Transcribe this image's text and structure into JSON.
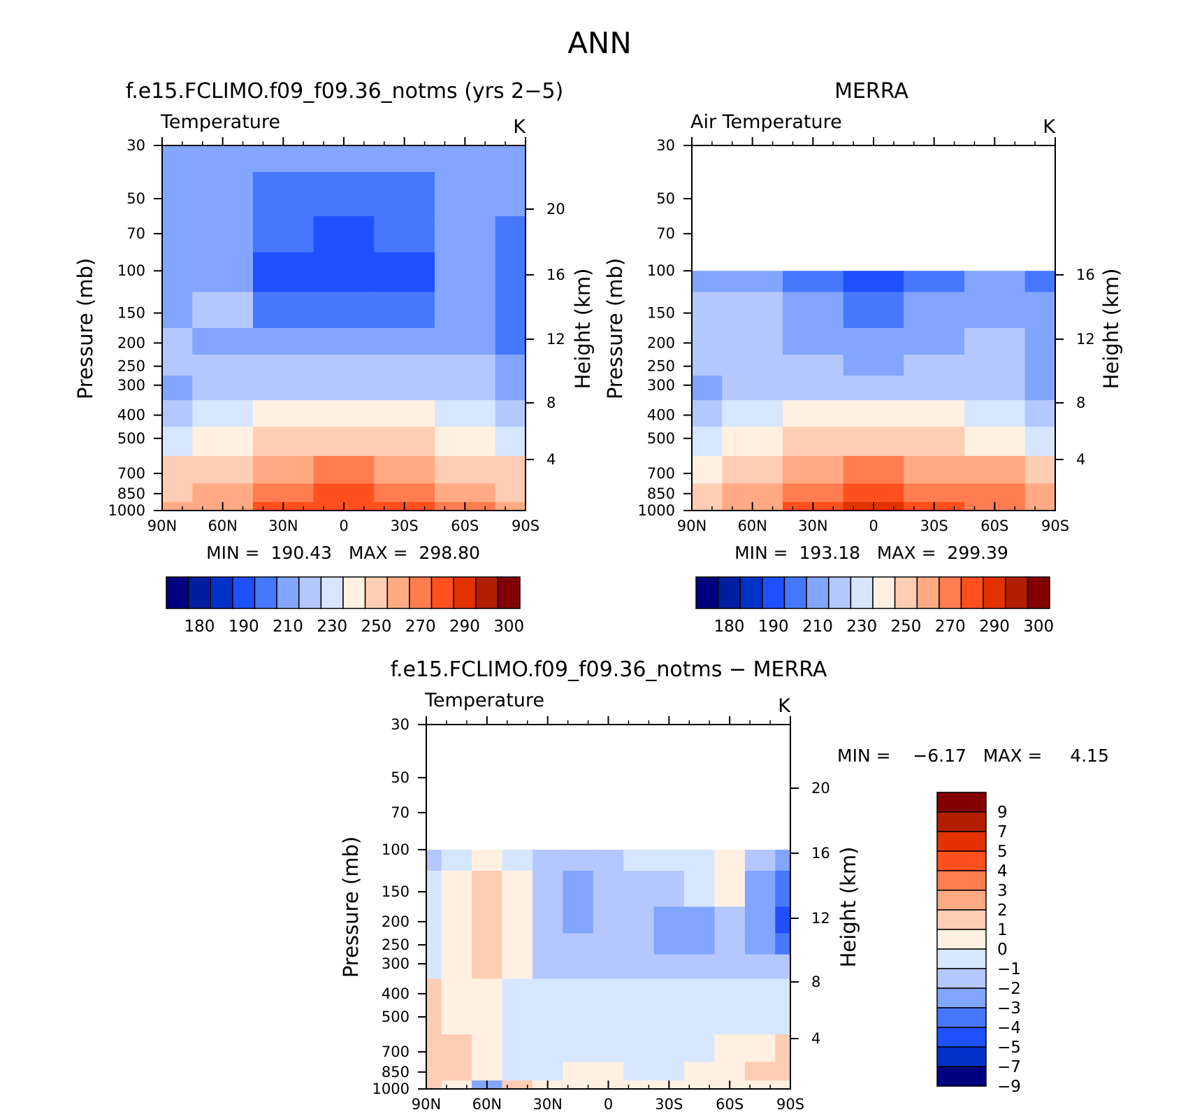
{
  "figure": {
    "title": "ANN"
  },
  "colors": {
    "abs_levels": [
      "#000080",
      "#001ea0",
      "#0032c8",
      "#1e50ff",
      "#4678ff",
      "#82a5ff",
      "#b4c8ff",
      "#d7e6ff",
      "#fff0e1",
      "#ffcdb4",
      "#ffaa82",
      "#ff7d50",
      "#ff501e",
      "#e13200",
      "#b41e00",
      "#820000"
    ],
    "diff_levels": [
      "#000080",
      "#0032c8",
      "#1e50ff",
      "#4678ff",
      "#82a5ff",
      "#b4c8ff",
      "#d7e6ff",
      "#fff0e1",
      "#ffcdb4",
      "#ffaa82",
      "#ff7d50",
      "#ff501e",
      "#e13200",
      "#b41e00",
      "#820000"
    ]
  },
  "chart_data": [
    {
      "type": "heatmap",
      "id": "model",
      "title": "f.e15.FCLIMO.f09_f09.36_notms (yrs 2−5)",
      "variable": "Temperature",
      "units": "K",
      "ylabel": "Pressure (mb)",
      "y2label": "Height (km)",
      "x_ticks": [
        "90N",
        "60N",
        "30N",
        "0",
        "30S",
        "60S",
        "90S"
      ],
      "x": [
        -90,
        -60,
        -30,
        0,
        30,
        60,
        90
      ],
      "y_ticks": [
        30,
        50,
        70,
        100,
        150,
        200,
        250,
        300,
        400,
        500,
        700,
        850,
        1000
      ],
      "y": [
        30,
        50,
        70,
        100,
        150,
        200,
        250,
        300,
        400,
        500,
        700,
        850,
        1000
      ],
      "ylim": [
        1000,
        30
      ],
      "y_log": true,
      "y2_ticks": [
        20,
        16,
        12,
        8,
        4
      ],
      "stats": "MIN =  190.43   MAX =  298.80",
      "min": 190.43,
      "max": 298.8,
      "z": [
        [
          216,
          215,
          215,
          214,
          214,
          214,
          214
        ],
        [
          217,
          213,
          205,
          203,
          205,
          213,
          212
        ],
        [
          217,
          212,
          200,
          196,
          200,
          213,
          208
        ],
        [
          218,
          212,
          199,
          195,
          199,
          212,
          206
        ],
        [
          219,
          222,
          205,
          205,
          206,
          211,
          206
        ],
        [
          220,
          218,
          214,
          213,
          214,
          212,
          206
        ],
        [
          221,
          222,
          221,
          220,
          221,
          220,
          212
        ],
        [
          212,
          220,
          227,
          229,
          227,
          220,
          211
        ],
        [
          226,
          232,
          242,
          246,
          242,
          230,
          226
        ],
        [
          238,
          244,
          254,
          256,
          254,
          242,
          236
        ],
        [
          250,
          256,
          268,
          270,
          268,
          258,
          253
        ],
        [
          257,
          262,
          277,
          281,
          278,
          266,
          257
        ],
        [
          261,
          268,
          284,
          289,
          286,
          272,
          264
        ]
      ]
    },
    {
      "type": "heatmap",
      "id": "obs",
      "title": "MERRA",
      "variable": "Air Temperature",
      "units": "K",
      "ylabel": "Pressure (mb)",
      "y2label": "Height (km)",
      "x_ticks": [
        "90N",
        "60N",
        "30N",
        "0",
        "30S",
        "60S",
        "90S"
      ],
      "x": [
        -90,
        -60,
        -30,
        0,
        30,
        60,
        90
      ],
      "y_ticks": [
        30,
        50,
        70,
        100,
        150,
        200,
        250,
        300,
        400,
        500,
        700,
        850,
        1000
      ],
      "y": [
        100,
        150,
        200,
        250,
        300,
        400,
        500,
        700,
        850,
        1000
      ],
      "ylim": [
        1000,
        30
      ],
      "y_log": true,
      "y2_ticks": [
        16,
        12,
        8,
        4
      ],
      "stats": "MIN =  193.18   MAX =  299.39",
      "min": 193.18,
      "max": 299.39,
      "z": [
        [
          219,
          216,
          205,
          195,
          205,
          216,
          208
        ],
        [
          221,
          220,
          212,
          202,
          212,
          219,
          214
        ],
        [
          222,
          220,
          216,
          212,
          216,
          220,
          216
        ],
        [
          220,
          221,
          220,
          219,
          220,
          220,
          216
        ],
        [
          214,
          222,
          226,
          228,
          226,
          222,
          216
        ],
        [
          224,
          234,
          242,
          245,
          242,
          234,
          225
        ],
        [
          236,
          245,
          254,
          257,
          254,
          245,
          238
        ],
        [
          249,
          258,
          267,
          271,
          268,
          260,
          254
        ],
        [
          254,
          264,
          276,
          281,
          278,
          270,
          262
        ],
        [
          256,
          268,
          284,
          290,
          286,
          275,
          265
        ]
      ]
    },
    {
      "type": "heatmap",
      "id": "diff",
      "title": "f.e15.FCLIMO.f09_f09.36_notms − MERRA",
      "variable": "Temperature",
      "units": "K",
      "ylabel": "Pressure (mb)",
      "y2label": "Height (km)",
      "x_ticks": [
        "90N",
        "60N",
        "30N",
        "0",
        "30S",
        "60S",
        "90S"
      ],
      "x": [
        -90,
        -75,
        -60,
        -45,
        -30,
        -15,
        0,
        15,
        30,
        45,
        60,
        75,
        90
      ],
      "y_ticks": [
        30,
        50,
        70,
        100,
        150,
        200,
        250,
        300,
        400,
        500,
        700,
        850,
        1000
      ],
      "y": [
        100,
        150,
        200,
        250,
        300,
        400,
        500,
        700,
        850,
        1000
      ],
      "ylim": [
        1000,
        30
      ],
      "y_log": true,
      "y2_ticks": [
        20,
        16,
        12,
        8,
        4
      ],
      "stats": "MIN =    −6.17   MAX =     4.15",
      "min": -6.17,
      "max": 4.15,
      "z": [
        [
          -2.5,
          -1.5,
          -0.5,
          -1.5,
          -2.5,
          -2.5,
          -2.5,
          -1.5,
          -1.5,
          -1.5,
          -0.5,
          -2.5,
          -3.5
        ],
        [
          -1.5,
          -0.5,
          0.5,
          -0.5,
          -2.5,
          -3.5,
          -2.5,
          -2.5,
          -2.5,
          -1.5,
          -0.5,
          -3.5,
          -4.5
        ],
        [
          -1.5,
          -0.5,
          0.5,
          -0.5,
          -2.5,
          -3.5,
          -2.5,
          -2.5,
          -3.5,
          -3.5,
          -2.5,
          -3.5,
          -5.5
        ],
        [
          -1.5,
          -0.5,
          0.5,
          -0.5,
          -2.5,
          -2.5,
          -2.5,
          -2.5,
          -3.5,
          -3.5,
          -2.5,
          -3.5,
          -4.5
        ],
        [
          -1.5,
          -0.5,
          0.5,
          -0.5,
          -2.5,
          -2.5,
          -2.5,
          -2.5,
          -2.5,
          -2.5,
          -2.5,
          -2.5,
          -2.5
        ],
        [
          0.5,
          -0.5,
          -0.5,
          -1.5,
          -1.5,
          -1.5,
          -1.5,
          -1.5,
          -1.5,
          -1.5,
          -1.5,
          -1.5,
          -1.5
        ],
        [
          0.5,
          -0.5,
          -0.5,
          -1.5,
          -1.5,
          -1.5,
          -1.5,
          -1.5,
          -1.5,
          -1.5,
          -1.5,
          -1.5,
          -1.5
        ],
        [
          0.5,
          0.5,
          -0.5,
          -1.5,
          -1.5,
          -1.5,
          -1.5,
          -1.5,
          -1.5,
          -1.5,
          -0.5,
          -0.5,
          0.5
        ],
        [
          0.5,
          0.5,
          -0.5,
          -1.5,
          -1.5,
          -0.5,
          -0.5,
          -1.5,
          -1.5,
          -0.5,
          -0.5,
          0.5,
          0.5
        ],
        [
          0.5,
          -0.5,
          -3.5,
          0.5,
          -0.5,
          -0.5,
          -0.5,
          -0.5,
          -0.5,
          -0.5,
          -0.5,
          -0.5,
          -0.5
        ]
      ]
    }
  ],
  "colorbars": {
    "abs": {
      "labels": [
        "180",
        "190",
        "210",
        "230",
        "250",
        "270",
        "290",
        "300"
      ]
    },
    "diff": {
      "labels": [
        "9",
        "7",
        "5",
        "4",
        "3",
        "2",
        "1",
        "0",
        "−1",
        "−2",
        "−3",
        "−4",
        "−5",
        "−7",
        "−9"
      ]
    }
  }
}
